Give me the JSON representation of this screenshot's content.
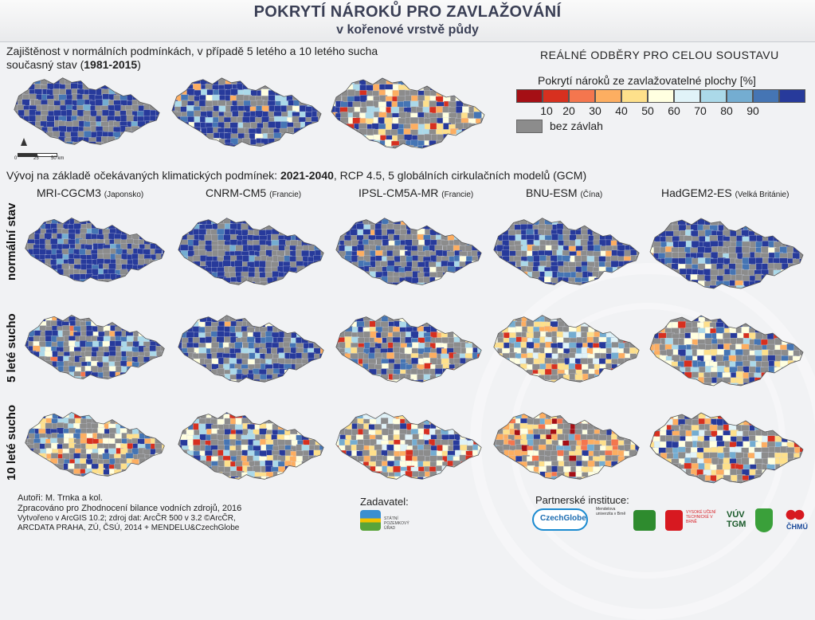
{
  "title": {
    "line1": "POKRYTÍ NÁROKŮ PRO ZAVLAŽOVÁNÍ",
    "line2": "v kořenové vrstvě půdy"
  },
  "intro": {
    "line1": "Zajištěnost v normálních podmínkách, v případě 5 letého a 10 letého sucha",
    "line2_prefix": "současný stav (",
    "line2_years": "1981-2015",
    "line2_suffix": ")"
  },
  "scale_bar": {
    "labels": [
      "0",
      "25",
      "50 km"
    ]
  },
  "legend": {
    "heading": "REÁLNÉ ODBĚRY PRO CELOU SOUSTAVU",
    "subheading": "Pokrytí nároků ze zavlažovatelné plochy [%]",
    "colors": [
      "#a50f15",
      "#d7301f",
      "#f4764e",
      "#fdae61",
      "#fee08b",
      "#ffffe0",
      "#e0f3f8",
      "#abd9e9",
      "#74add1",
      "#4575b4",
      "#273a9b"
    ],
    "ticks": [
      "10",
      "20",
      "30",
      "40",
      "50",
      "60",
      "70",
      "80",
      "90"
    ],
    "no_irrigation_color": "#8c8c8c",
    "no_irrigation_label": "bez závlah"
  },
  "future": {
    "prefix": "Vývoj na základě očekávaných klimatických podmínek: ",
    "period": "2021-2040",
    "suffix": ", RCP 4.5, 5 globálních cirkulačních modelů (GCM)"
  },
  "models": [
    {
      "name": "MRI-CGCM3",
      "country": "(Japonsko)"
    },
    {
      "name": "CNRM-CM5",
      "country": "(Francie)"
    },
    {
      "name": "IPSL-CM5A-MR",
      "country": "(Francie)"
    },
    {
      "name": "BNU-ESM",
      "country": "(Čína)"
    },
    {
      "name": "HadGEM2-ES",
      "country": "(Velká Británie)"
    }
  ],
  "row_labels": [
    "normální stav",
    "5 leté sucho",
    "10 leté sucho"
  ],
  "footer": {
    "authors": "Autoři: M. Trnka a kol.",
    "purpose": "Zpracováno pro Zhodnocení bilance vodních zdrojů, 2016",
    "source1": "Vytvořeno v ArcGIS 10.2; zdroj dat: ArcČR 500 v 3.2 ©ArcČR,",
    "source2": "ARCDATA PRAHA, ZÚ, ČSÚ, 2014 + MENDELU&CzechGlobe",
    "client_label": "Zadavatel:",
    "client_logo": "STÁTNÍ POZEMKOVÝ ÚŘAD",
    "partners_label": "Partnerské instituce:",
    "partner_logos": [
      "CzechGlobe",
      "Mendelova univerzita v Brně",
      "VYSOKÉ UČENÍ TECHNICKÉ V BRNĚ",
      "VÚV TGM",
      "ČHMÚ"
    ]
  }
}
